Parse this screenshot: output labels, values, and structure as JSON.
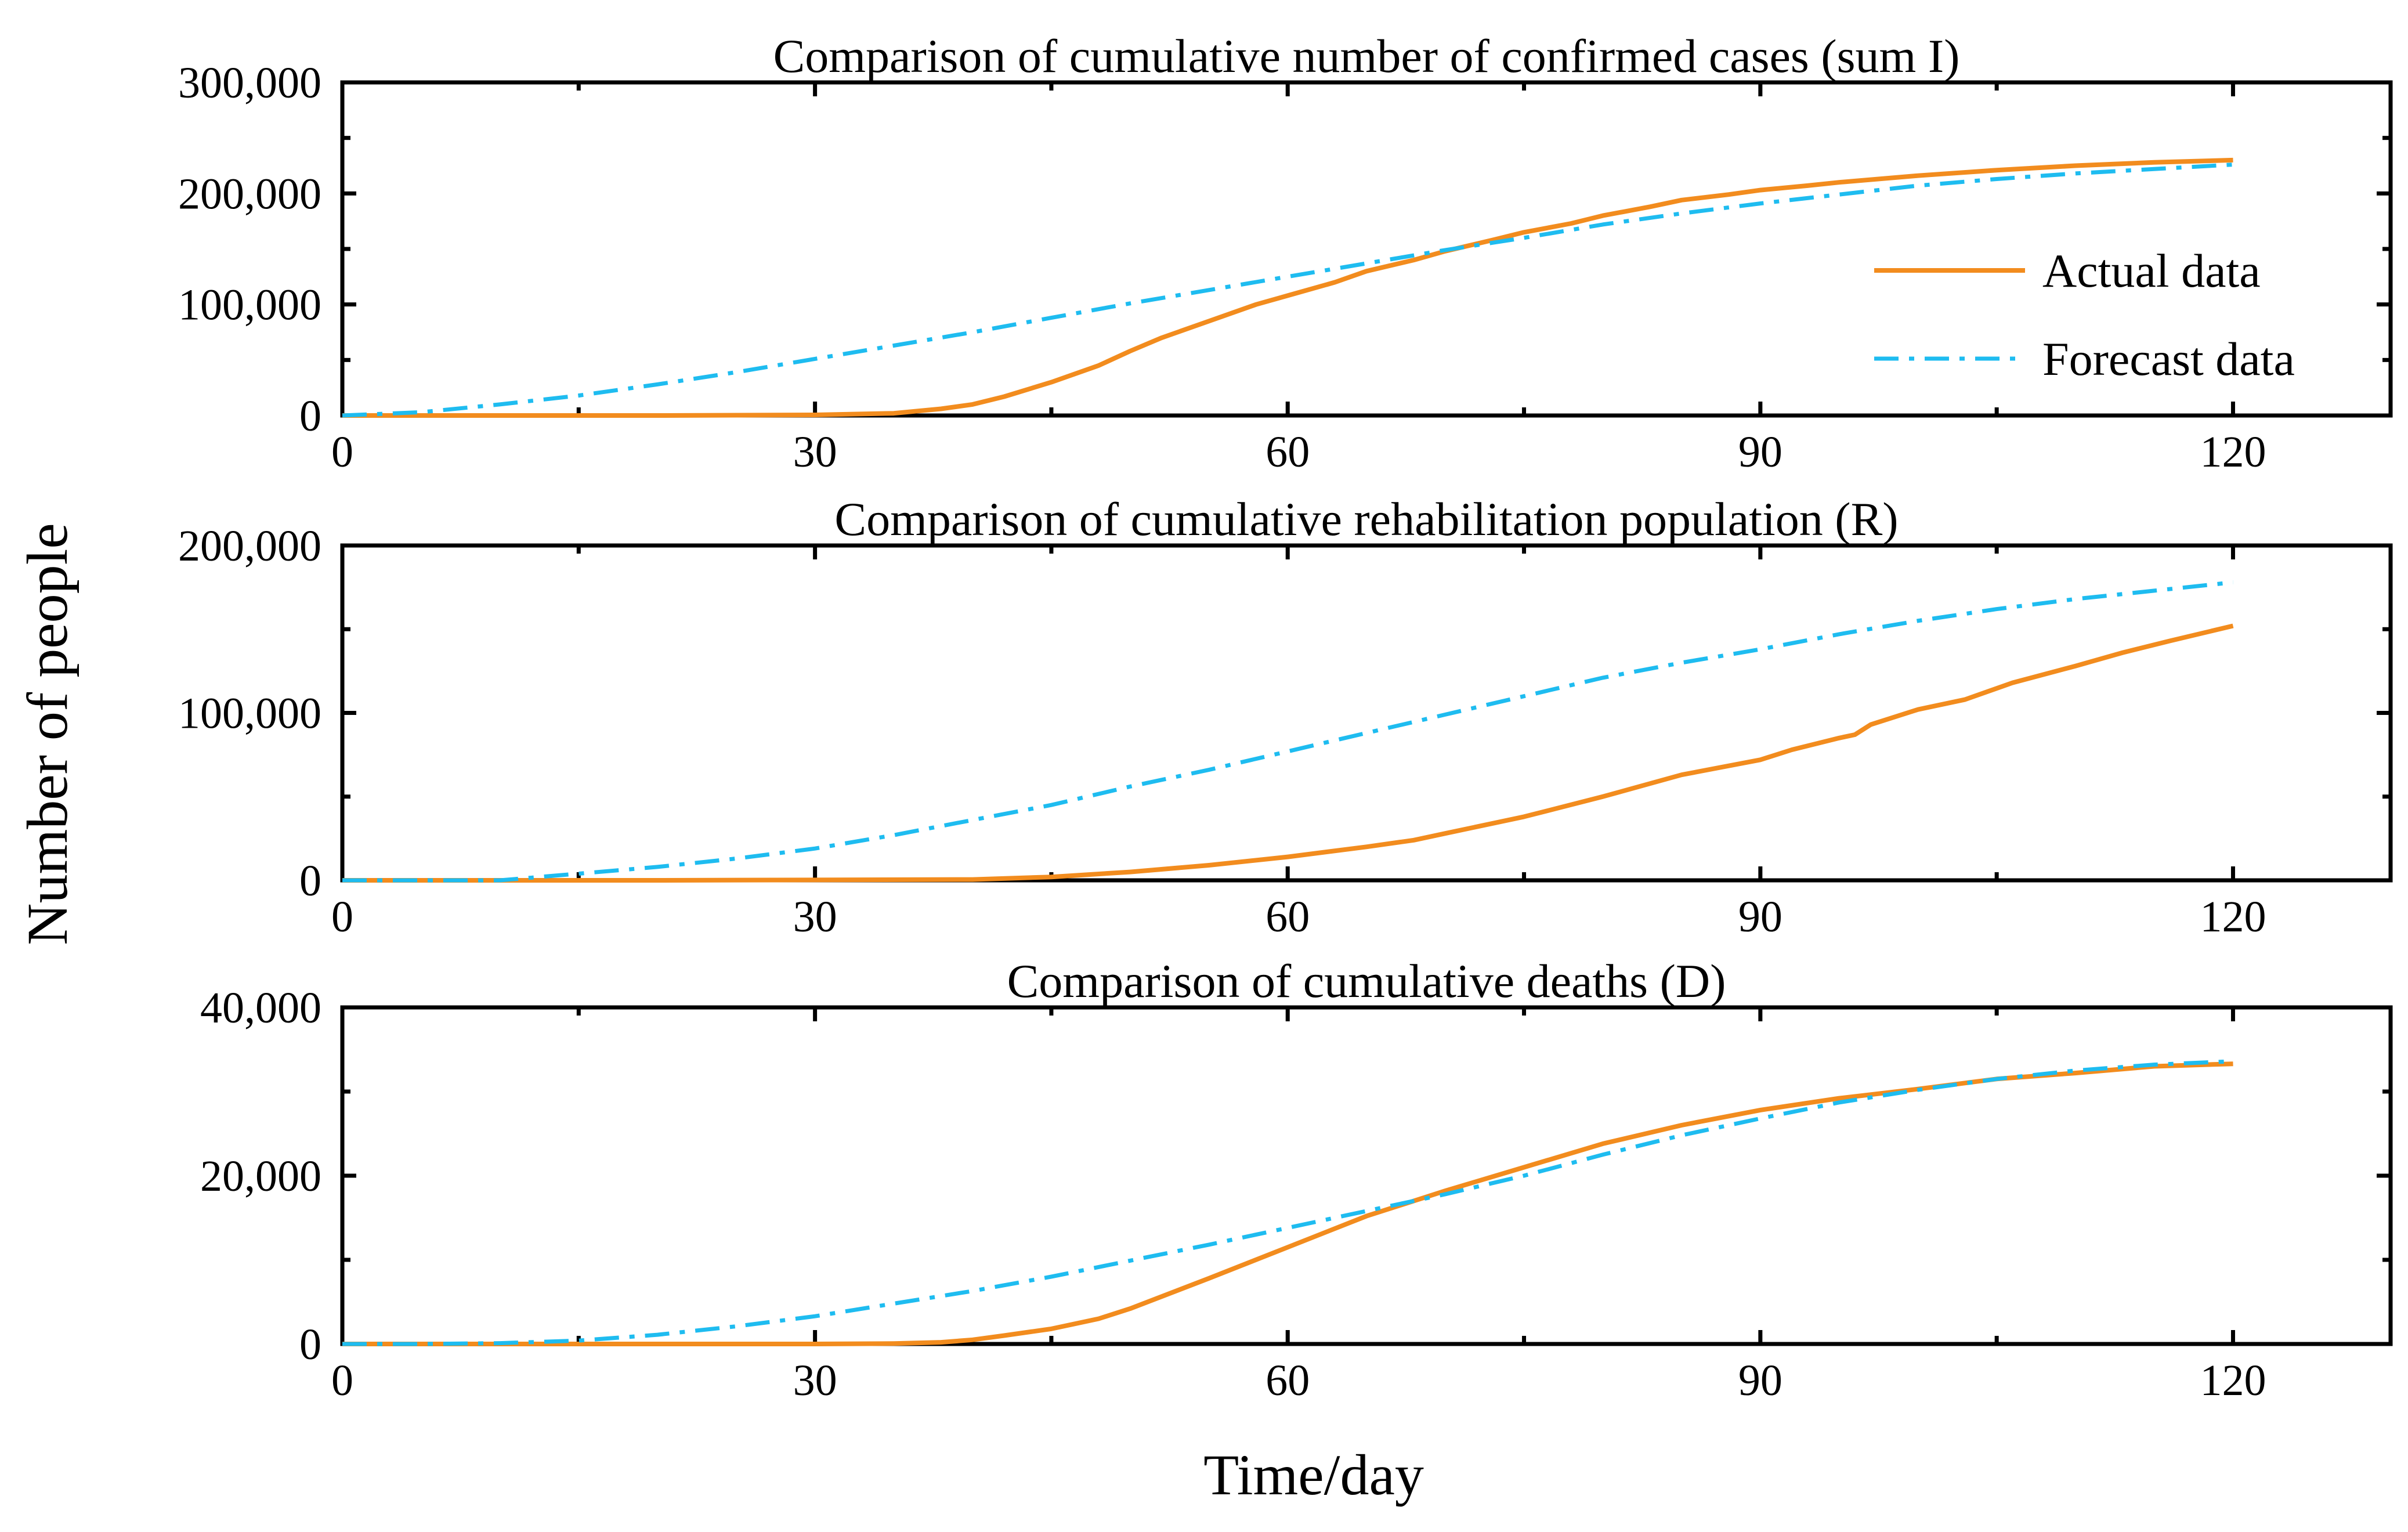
{
  "figure": {
    "ylabel": "Number of people",
    "xlabel": "Time/day"
  },
  "legend": {
    "actual_label": "Actual data",
    "forecast_label": "Forecast data"
  },
  "colors": {
    "actual": "#F28C1E",
    "forecast": "#1EBCF0"
  },
  "chart_data": [
    {
      "type": "line",
      "title": "Comparison of cumulative number of confirmed cases (sum I)",
      "xlim": [
        0,
        130
      ],
      "ylim": [
        0,
        300000
      ],
      "xticks": [
        0,
        30,
        60,
        90,
        120
      ],
      "xtick_labels": [
        "0",
        "30",
        "60",
        "90",
        "120"
      ],
      "yticks": [
        0,
        100000,
        200000,
        300000
      ],
      "ytick_labels": [
        "0",
        "100,000",
        "200,000",
        "300,000"
      ],
      "legend_position": "right",
      "series": [
        {
          "name": "Actual data",
          "style": "solid",
          "x": [
            0,
            10,
            20,
            30,
            35,
            38,
            40,
            42,
            45,
            48,
            50,
            52,
            55,
            58,
            60,
            63,
            65,
            68,
            70,
            73,
            75,
            78,
            80,
            83,
            85,
            88,
            90,
            93,
            95,
            100,
            105,
            110,
            115,
            120
          ],
          "y": [
            0,
            0,
            0,
            500,
            2000,
            6000,
            10000,
            17000,
            30000,
            45000,
            58000,
            70000,
            85000,
            100000,
            108000,
            120000,
            130000,
            140000,
            148000,
            158000,
            165000,
            173000,
            180000,
            188000,
            194000,
            199000,
            203000,
            207000,
            210000,
            216000,
            221000,
            225000,
            228000,
            230000
          ]
        },
        {
          "name": "Forecast data",
          "style": "dashdot",
          "x": [
            0,
            5,
            10,
            15,
            20,
            25,
            30,
            35,
            40,
            45,
            50,
            55,
            60,
            65,
            70,
            75,
            80,
            85,
            90,
            95,
            100,
            105,
            110,
            115,
            120
          ],
          "y": [
            0,
            3000,
            10000,
            18000,
            28000,
            39000,
            51000,
            63000,
            75000,
            88000,
            101000,
            113000,
            125000,
            137000,
            149000,
            160000,
            172000,
            182000,
            191000,
            199000,
            207000,
            213000,
            218000,
            222000,
            226000
          ]
        }
      ]
    },
    {
      "type": "line",
      "title": "Comparison of cumulative rehabilitation population (R)",
      "xlim": [
        0,
        130
      ],
      "ylim": [
        0,
        200000
      ],
      "xticks": [
        0,
        30,
        60,
        90,
        120
      ],
      "xtick_labels": [
        "0",
        "30",
        "60",
        "90",
        "120"
      ],
      "yticks": [
        0,
        100000,
        200000
      ],
      "ytick_labels": [
        "0",
        "100,000",
        "200,000"
      ],
      "series": [
        {
          "name": "Actual data",
          "style": "solid",
          "x": [
            0,
            20,
            40,
            45,
            50,
            55,
            60,
            65,
            68,
            70,
            75,
            80,
            85,
            90,
            92,
            95,
            96,
            97,
            100,
            103,
            106,
            110,
            113,
            116,
            120
          ],
          "y": [
            0,
            0,
            500,
            2000,
            5000,
            9000,
            14000,
            20000,
            24000,
            28000,
            38000,
            50000,
            63000,
            72000,
            78000,
            85000,
            87000,
            93000,
            102000,
            108000,
            118000,
            128000,
            136000,
            143000,
            152000
          ]
        },
        {
          "name": "Forecast data",
          "style": "dashdot",
          "x": [
            0,
            5,
            10,
            15,
            20,
            25,
            30,
            35,
            40,
            45,
            50,
            55,
            60,
            65,
            70,
            75,
            80,
            85,
            90,
            95,
            100,
            105,
            110,
            115,
            120
          ],
          "y": [
            0,
            0,
            0,
            4000,
            8000,
            13000,
            19000,
            27000,
            36000,
            45000,
            56000,
            66000,
            77000,
            88000,
            99000,
            110000,
            121000,
            130000,
            138000,
            147000,
            155000,
            162000,
            168000,
            173000,
            178000
          ]
        }
      ]
    },
    {
      "type": "line",
      "title": "Comparison of cumulative deaths (D)",
      "xlim": [
        0,
        130
      ],
      "ylim": [
        0,
        40000
      ],
      "xticks": [
        0,
        30,
        60,
        90,
        120
      ],
      "xtick_labels": [
        "0",
        "30",
        "60",
        "90",
        "120"
      ],
      "yticks": [
        0,
        20000,
        40000
      ],
      "ytick_labels": [
        "0",
        "20,000",
        "40,000"
      ],
      "series": [
        {
          "name": "Actual data",
          "style": "solid",
          "x": [
            0,
            10,
            20,
            30,
            35,
            38,
            40,
            42,
            45,
            48,
            50,
            55,
            60,
            65,
            70,
            75,
            80,
            85,
            90,
            95,
            100,
            105,
            110,
            115,
            120
          ],
          "y": [
            0,
            0,
            0,
            0,
            50,
            200,
            500,
            1000,
            1800,
            3000,
            4200,
            7800,
            11500,
            15200,
            18200,
            21000,
            23800,
            26000,
            27800,
            29200,
            30300,
            31500,
            32200,
            33000,
            33300
          ]
        },
        {
          "name": "Forecast data",
          "style": "dashdot",
          "x": [
            0,
            5,
            10,
            15,
            20,
            25,
            30,
            35,
            40,
            45,
            50,
            55,
            60,
            65,
            70,
            75,
            80,
            85,
            90,
            95,
            100,
            105,
            110,
            115,
            120
          ],
          "y": [
            0,
            0,
            100,
            400,
            1100,
            2100,
            3300,
            4800,
            6300,
            8000,
            9900,
            11800,
            13800,
            15800,
            17800,
            20000,
            22500,
            24800,
            26800,
            28700,
            30200,
            31500,
            32500,
            33200,
            33600
          ]
        }
      ]
    }
  ]
}
